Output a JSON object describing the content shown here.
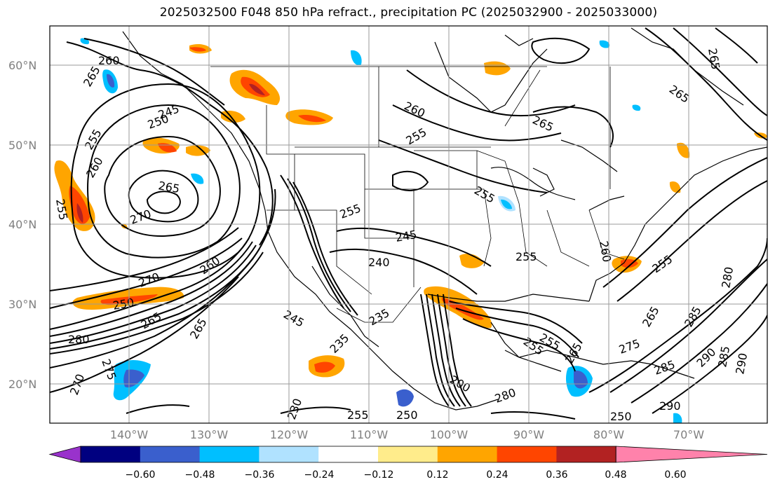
{
  "title": "2025032500 F048 850 hPa refract., precipitation PC (2025032900 - 2025033000)",
  "axes": {
    "lat_ticks": [
      "60°N",
      "50°N",
      "40°N",
      "30°N",
      "20°N"
    ],
    "lon_ticks": [
      "140°W",
      "130°W",
      "120°W",
      "110°W",
      "100°W",
      "90°W",
      "80°W",
      "70°W"
    ]
  },
  "colorbar": {
    "tick_labels": [
      "−0.60",
      "−0.48",
      "−0.36",
      "−0.24",
      "−0.12",
      "0.12",
      "0.24",
      "0.36",
      "0.48",
      "0.60"
    ],
    "colors": [
      "#9932cc",
      "#000080",
      "#3a5fcd",
      "#00bfff",
      "#b0e2ff",
      "#ffffff",
      "#ffec8b",
      "#ffa500",
      "#ff4500",
      "#b22222",
      "#ff82ab"
    ]
  },
  "contour_labels": [
    "260",
    "265",
    "245",
    "250",
    "255",
    "260",
    "265",
    "270",
    "255",
    "260",
    "265",
    "255",
    "270",
    "260",
    "250",
    "265",
    "245",
    "240",
    "245",
    "235",
    "255",
    "255",
    "265",
    "255",
    "280",
    "285",
    "290",
    "290",
    "285",
    "275",
    "260",
    "255",
    "255",
    "265",
    "275",
    "255",
    "235",
    "280",
    "265",
    "250",
    "230",
    "270",
    "265",
    "200",
    "280",
    "285",
    "290",
    "250",
    "265",
    "255"
  ]
}
